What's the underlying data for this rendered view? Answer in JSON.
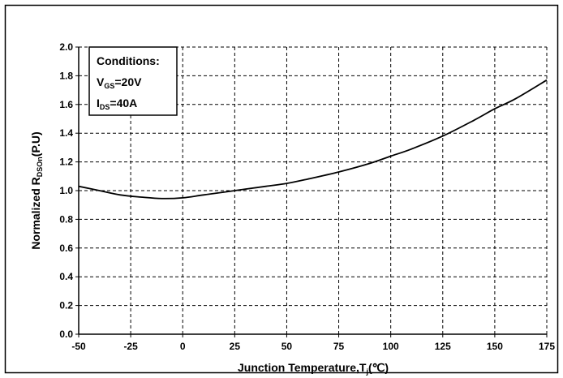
{
  "chart_data": {
    "type": "line",
    "title": "",
    "xlabel": {
      "main": "Junction Temperature,T",
      "sub": "j",
      "unit": "(℃)"
    },
    "ylabel": {
      "main": "Normalized R",
      "sub": "DSOn",
      "unit": "(P.U)"
    },
    "xlim": [
      -50,
      175
    ],
    "ylim": [
      0.0,
      2.0
    ],
    "x_ticks": [
      "-50",
      "-25",
      "0",
      "25",
      "50",
      "75",
      "100",
      "125",
      "150",
      "175"
    ],
    "y_ticks": [
      "0.0",
      "0.2",
      "0.4",
      "0.6",
      "0.8",
      "1.0",
      "1.2",
      "1.4",
      "1.6",
      "1.8",
      "2.0"
    ],
    "grid": true,
    "series": [
      {
        "name": "",
        "x": [
          -50,
          -40,
          -30,
          -20,
          -10,
          0,
          10,
          25,
          40,
          50,
          60,
          75,
          90,
          100,
          110,
          125,
          140,
          150,
          160,
          175
        ],
        "y": [
          1.03,
          1.0,
          0.97,
          0.955,
          0.945,
          0.95,
          0.97,
          1.0,
          1.03,
          1.05,
          1.08,
          1.13,
          1.19,
          1.24,
          1.29,
          1.38,
          1.49,
          1.57,
          1.64,
          1.77
        ]
      }
    ],
    "annotation": {
      "heading": "Conditions:",
      "lines": [
        {
          "main": "V",
          "sub": "GS",
          "rest": "=20V"
        },
        {
          "main": "I",
          "sub": "DS",
          "rest": "=40A"
        }
      ]
    }
  }
}
